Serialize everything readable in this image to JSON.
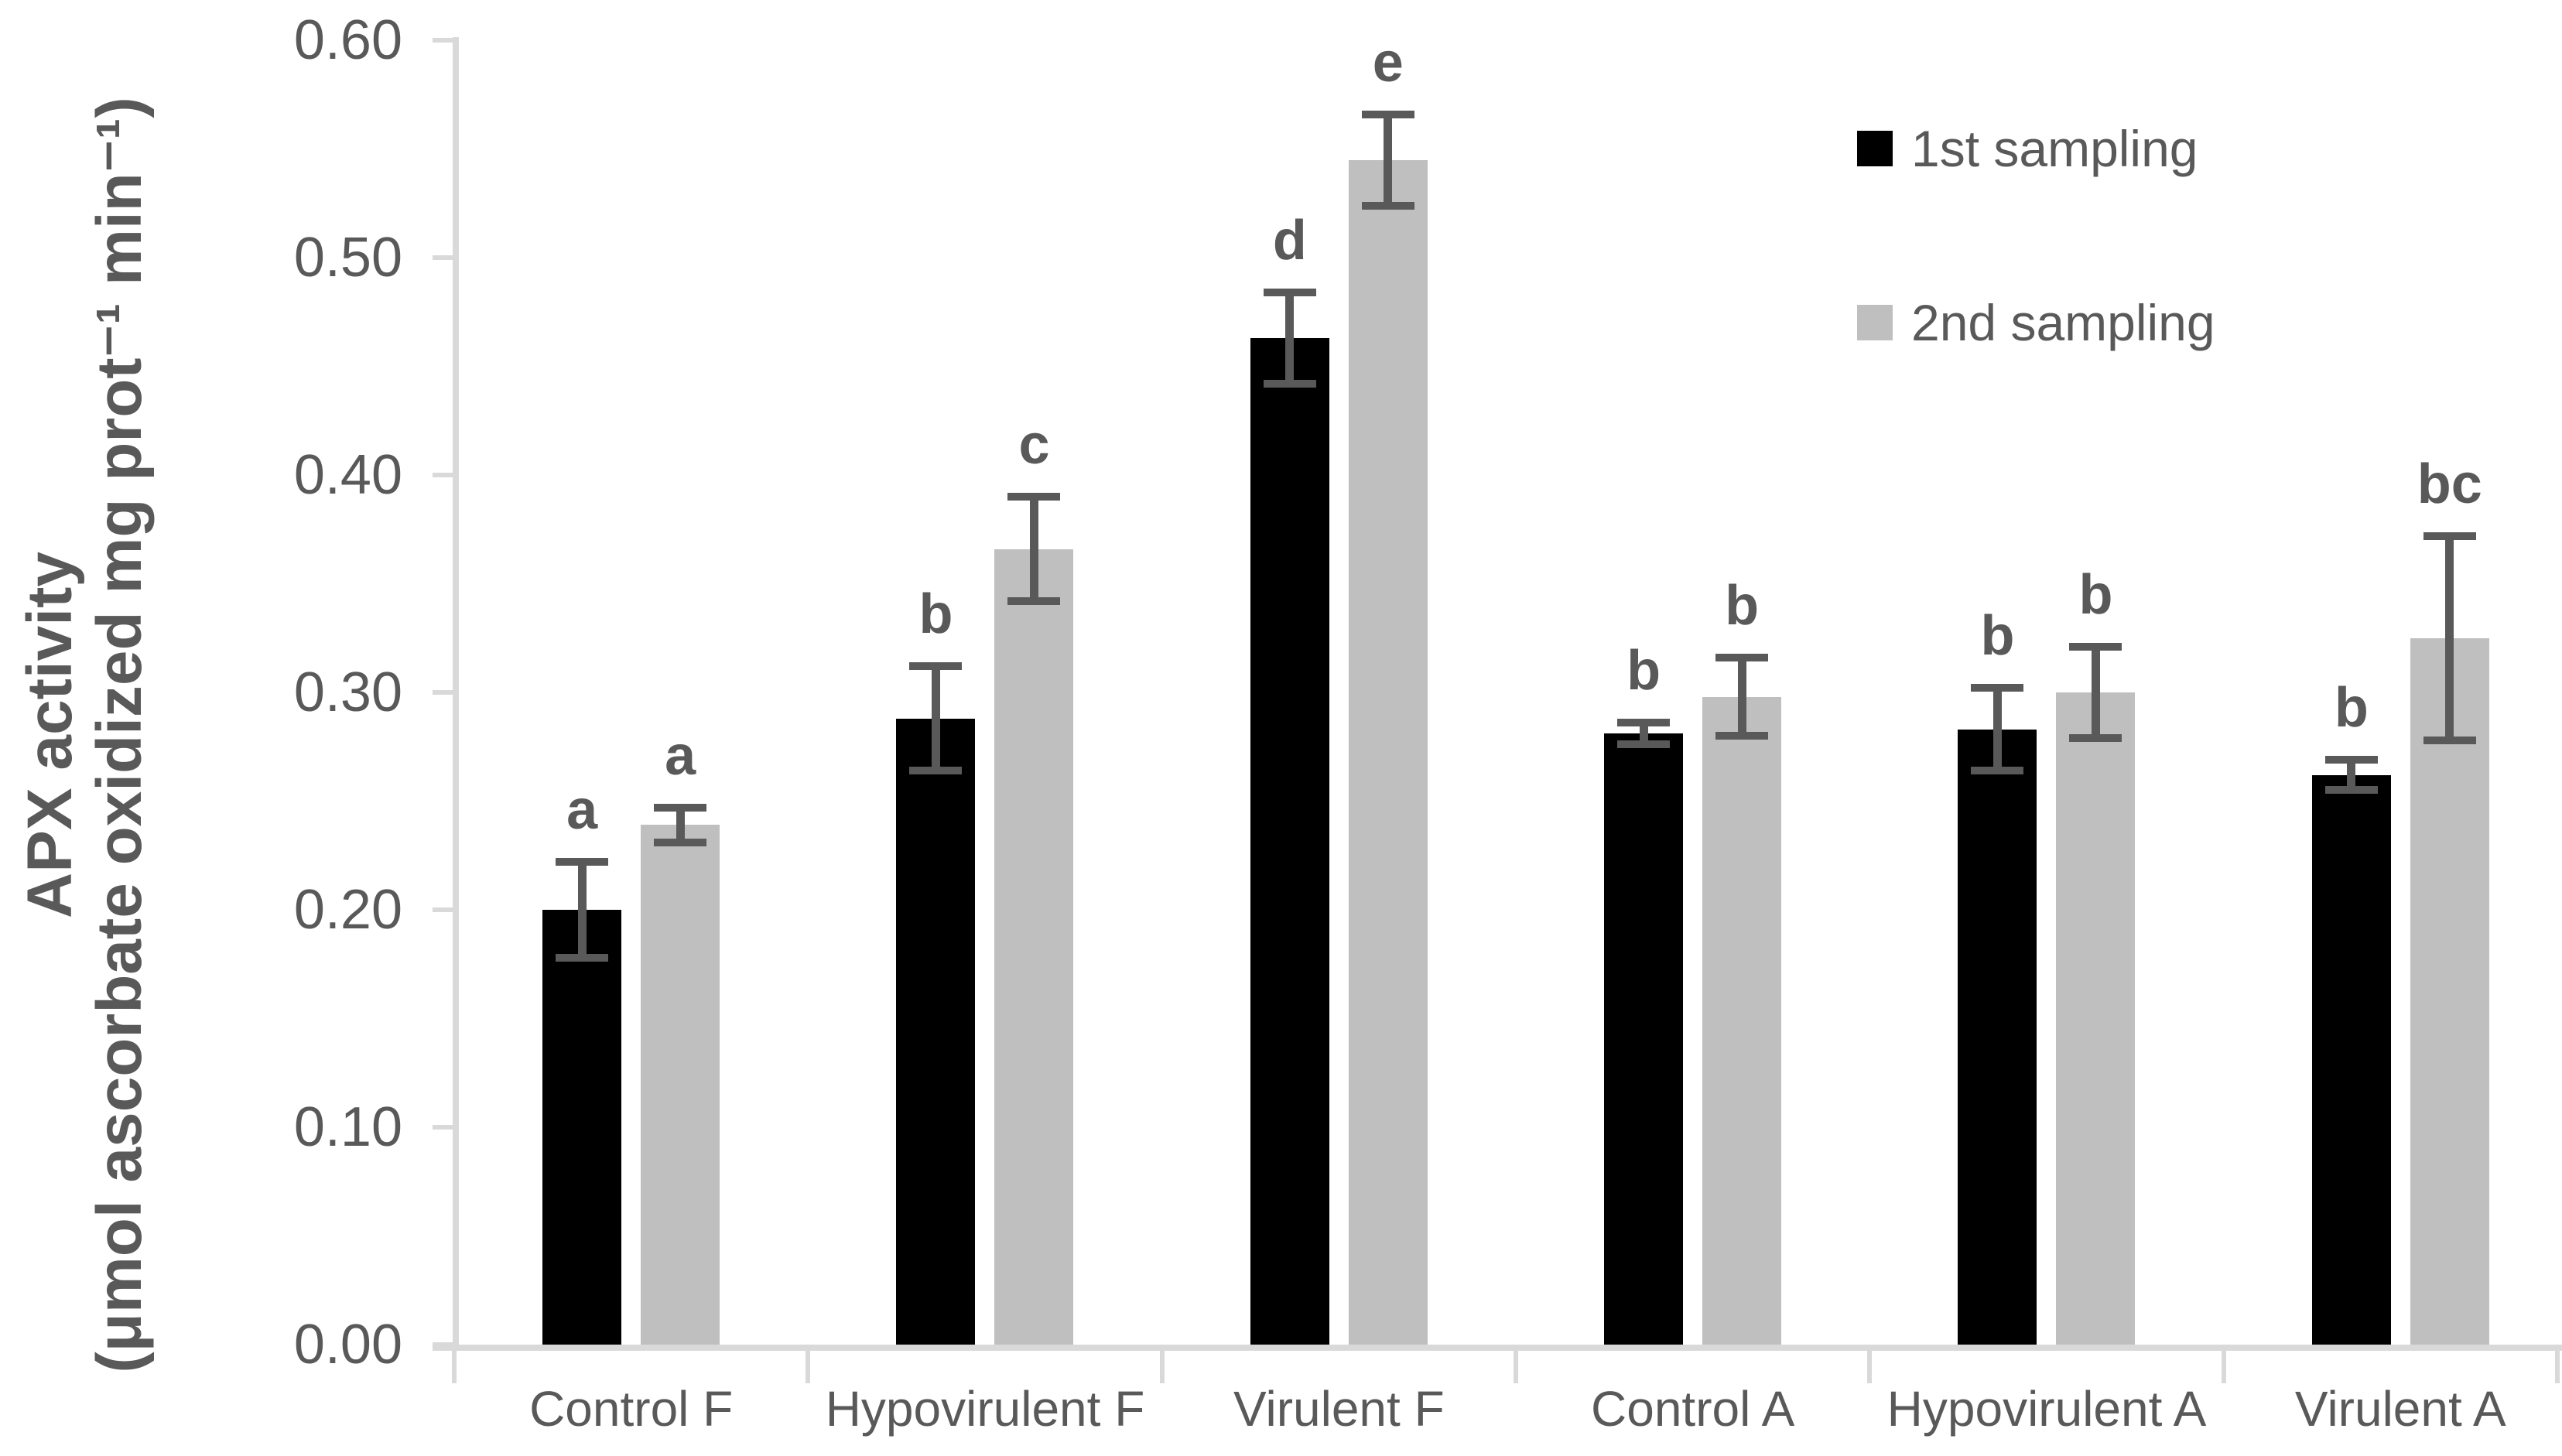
{
  "chart_data": {
    "type": "bar",
    "title": "",
    "ylabel_line1": "APX activity",
    "ylabel_line2": "(μmol ascorbate oxidized mg prot⁻¹ min⁻¹)",
    "xlabel": "",
    "categories": [
      "Control F",
      "Hypovirulent F",
      "Virulent F",
      "Control A",
      "Hypovirulent A",
      "Virulent A"
    ],
    "series": [
      {
        "name": "1st sampling",
        "color": "#000000",
        "values": [
          0.2,
          0.288,
          0.463,
          0.281,
          0.283,
          0.262
        ],
        "errors": [
          0.022,
          0.024,
          0.021,
          0.005,
          0.019,
          0.007
        ],
        "letters": [
          "a",
          "b",
          "d",
          "b",
          "b",
          "b"
        ]
      },
      {
        "name": "2nd sampling",
        "color": "#bfbfbf",
        "values": [
          0.239,
          0.366,
          0.545,
          0.298,
          0.3,
          0.325
        ],
        "errors": [
          0.008,
          0.024,
          0.021,
          0.018,
          0.021,
          0.047
        ],
        "letters": [
          "a",
          "c",
          "e",
          "b",
          "b",
          "bc"
        ]
      }
    ],
    "y_ticks": [
      "0.00",
      "0.10",
      "0.20",
      "0.30",
      "0.40",
      "0.50",
      "0.60"
    ],
    "ylim": [
      0.0,
      0.6
    ],
    "grid": false,
    "legend_position": "top-right",
    "error_bar_color": "#595959",
    "axis_line_color": "#d9d9d9",
    "text_color": "#595959"
  },
  "legend": {
    "items": [
      {
        "label": "1st sampling",
        "color": "#000000"
      },
      {
        "label": "2nd sampling",
        "color": "#bfbfbf"
      }
    ]
  }
}
